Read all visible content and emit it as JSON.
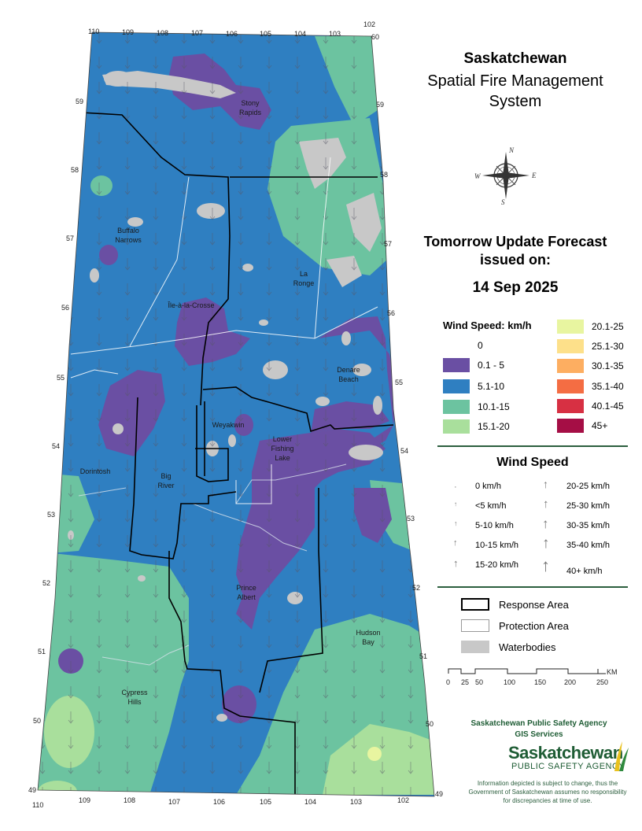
{
  "header": {
    "title": "Saskatchewan",
    "subtitle_line1": "Spatial Fire Management",
    "subtitle_line2": "System",
    "forecast_line1": "Tomorrow Update Forecast",
    "forecast_line2": "issued on:",
    "date": "14 Sep 2025"
  },
  "wind_legend": {
    "title": "Wind Speed: km/h",
    "classes": [
      {
        "label": "0",
        "color": "#ffffff"
      },
      {
        "label": "0.1 - 5",
        "color": "#6a4fa3"
      },
      {
        "label": "5.1-10",
        "color": "#2f7fc1"
      },
      {
        "label": "10.1-15",
        "color": "#6cc3a0"
      },
      {
        "label": "15.1-20",
        "color": "#a9df9c"
      },
      {
        "label": "20.1-25",
        "color": "#e8f5a0"
      },
      {
        "label": "25.1-30",
        "color": "#fde08a"
      },
      {
        "label": "30.1-35",
        "color": "#fdae61"
      },
      {
        "label": "35.1-40",
        "color": "#f46d43"
      },
      {
        "label": "40.1-45",
        "color": "#d73043"
      },
      {
        "label": "45+",
        "color": "#a50e45"
      }
    ]
  },
  "arrow_legend": {
    "title": "Wind Speed",
    "left": [
      "0 km/h",
      "<5 km/h",
      "5-10 km/h",
      "10-15 km/h",
      "15-20 km/h"
    ],
    "right": [
      "20-25 km/h",
      "25-30 km/h",
      "30-35 km/h",
      "35-40 km/h",
      "40+ km/h"
    ]
  },
  "area_legend": {
    "response": "Response Area",
    "protection": "Protection Area",
    "waterbodies": "Waterbodies"
  },
  "scale_bar": {
    "labels": [
      "0",
      "25",
      "50",
      "100",
      "150",
      "200",
      "250"
    ],
    "unit": "KM"
  },
  "map": {
    "north_labels": [
      "N",
      "E",
      "W",
      "S"
    ],
    "top_ticks": [
      "110",
      "109",
      "108",
      "107",
      "106",
      "105",
      "104",
      "103",
      "102"
    ],
    "bottom_ticks": [
      "110",
      "109",
      "108",
      "107",
      "106",
      "105",
      "104",
      "103",
      "102"
    ],
    "corner_top": "60",
    "corner_bottom": "49",
    "left_lat": [
      "59",
      "58",
      "57",
      "56",
      "55",
      "54",
      "53",
      "52",
      "51",
      "50",
      "49"
    ],
    "right_lat": [
      "59",
      "58",
      "57",
      "56",
      "55",
      "54",
      "53",
      "52",
      "51",
      "50"
    ],
    "places": {
      "stony_rapids": [
        "Stony",
        "Rapids"
      ],
      "buffalo_narrows": [
        "Buffalo",
        "Narrows"
      ],
      "la_ronge": [
        "La",
        "Ronge"
      ],
      "ile_a_la_crosse": "Île-à-la-Crosse",
      "denare_beach": [
        "Denare",
        "Beach"
      ],
      "weyakwin": "Weyakwin",
      "lower_fishing_lake": [
        "Lower",
        "Fishing",
        "Lake"
      ],
      "dorintosh": "Dorintosh",
      "big_river": [
        "Big",
        "River"
      ],
      "prince_albert": [
        "Prince",
        "Albert"
      ],
      "hudson_bay": [
        "Hudson",
        "Bay"
      ],
      "cypress_hills": [
        "Cypress",
        "Hills"
      ]
    }
  },
  "footer": {
    "agency": "Saskatchewan Public Safety Agency",
    "unit": "GIS  Services",
    "logo_main": "Saskatchewan",
    "logo_sub": "PUBLIC SAFETY AGENCY",
    "disclaimer": "Information depicted is subject to change, thus the Government of Saskatchewan assumes no responsibility for discrepancies at time of use."
  }
}
